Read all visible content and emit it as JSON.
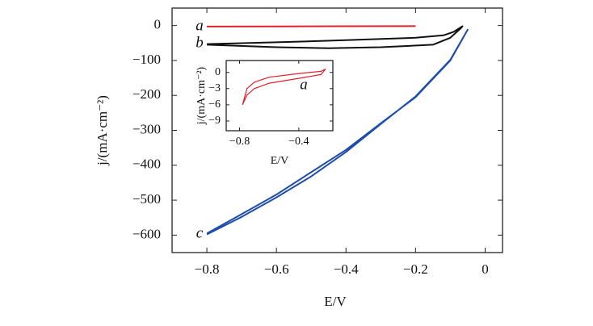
{
  "chart_data": [
    {
      "type": "line",
      "xlabel": "E/V",
      "ylabel": "j/(mA·cm⁻²)",
      "xlim": [
        -0.9,
        0.05
      ],
      "ylim": [
        -650,
        50
      ],
      "xticks": [
        {
          "value": -0.8,
          "label": "−0.8"
        },
        {
          "value": -0.6,
          "label": "−0.6"
        },
        {
          "value": -0.4,
          "label": "−0.4"
        },
        {
          "value": -0.2,
          "label": "−0.2"
        },
        0
      ],
      "yticks": [
        0,
        {
          "value": -100,
          "label": "−100"
        },
        {
          "value": -200,
          "label": "−200"
        },
        {
          "value": -300,
          "label": "−300"
        },
        {
          "value": -400,
          "label": "−400"
        },
        {
          "value": -500,
          "label": "−500"
        },
        {
          "value": -600,
          "label": "−600"
        }
      ],
      "series": [
        {
          "name": "a",
          "color": "#e0202a",
          "x": [
            -0.8,
            -0.6,
            -0.4,
            -0.2
          ],
          "values": [
            -3,
            -2.5,
            -2,
            -1.5
          ]
        },
        {
          "name": "b",
          "color": "#111111",
          "x": [
            -0.8,
            -0.6,
            -0.4,
            -0.2,
            -0.12,
            -0.09,
            -0.065,
            -0.07,
            -0.1,
            -0.15,
            -0.3,
            -0.45,
            -0.6,
            -0.8
          ],
          "values": [
            -53,
            -48,
            -42,
            -35,
            -28,
            -18,
            -2,
            -8,
            -35,
            -55,
            -62,
            -65,
            -62,
            -55
          ]
        },
        {
          "name": "c",
          "color": "#1f4ea8",
          "x": [
            -0.8,
            -0.7,
            -0.6,
            -0.5,
            -0.4,
            -0.3,
            -0.2,
            -0.1,
            -0.05,
            -0.1,
            -0.2,
            -0.3,
            -0.4,
            -0.5,
            -0.6,
            -0.7,
            -0.8
          ],
          "values": [
            -595,
            -540,
            -484,
            -420,
            -356,
            -280,
            -205,
            -100,
            -12,
            -98,
            -203,
            -282,
            -362,
            -432,
            -492,
            -548,
            -598
          ]
        }
      ]
    },
    {
      "type": "line",
      "xlabel": "E/V",
      "ylabel": "j/(mA·cm⁻²)",
      "xlim": [
        -0.89,
        -0.17
      ],
      "ylim": [
        -10.8,
        2.2
      ],
      "xticks": [
        {
          "value": -0.8,
          "label": "−0.8"
        },
        {
          "value": -0.4,
          "label": "−0.4"
        }
      ],
      "yticks": [
        0,
        {
          "value": -3,
          "label": "−3"
        },
        {
          "value": -6,
          "label": "−6"
        },
        {
          "value": -9,
          "label": "−9"
        }
      ],
      "series": [
        {
          "name": "a",
          "color": "#e0202a",
          "x": [
            -0.78,
            -0.75,
            -0.7,
            -0.6,
            -0.4,
            -0.25,
            -0.22,
            -0.25,
            -0.4,
            -0.6,
            -0.7,
            -0.75,
            -0.78
          ],
          "values": [
            -6,
            -4.2,
            -3.0,
            -2.0,
            -1.1,
            -0.4,
            0.6,
            0.2,
            -0.2,
            -0.9,
            -1.8,
            -3.0,
            -6
          ]
        }
      ]
    }
  ]
}
